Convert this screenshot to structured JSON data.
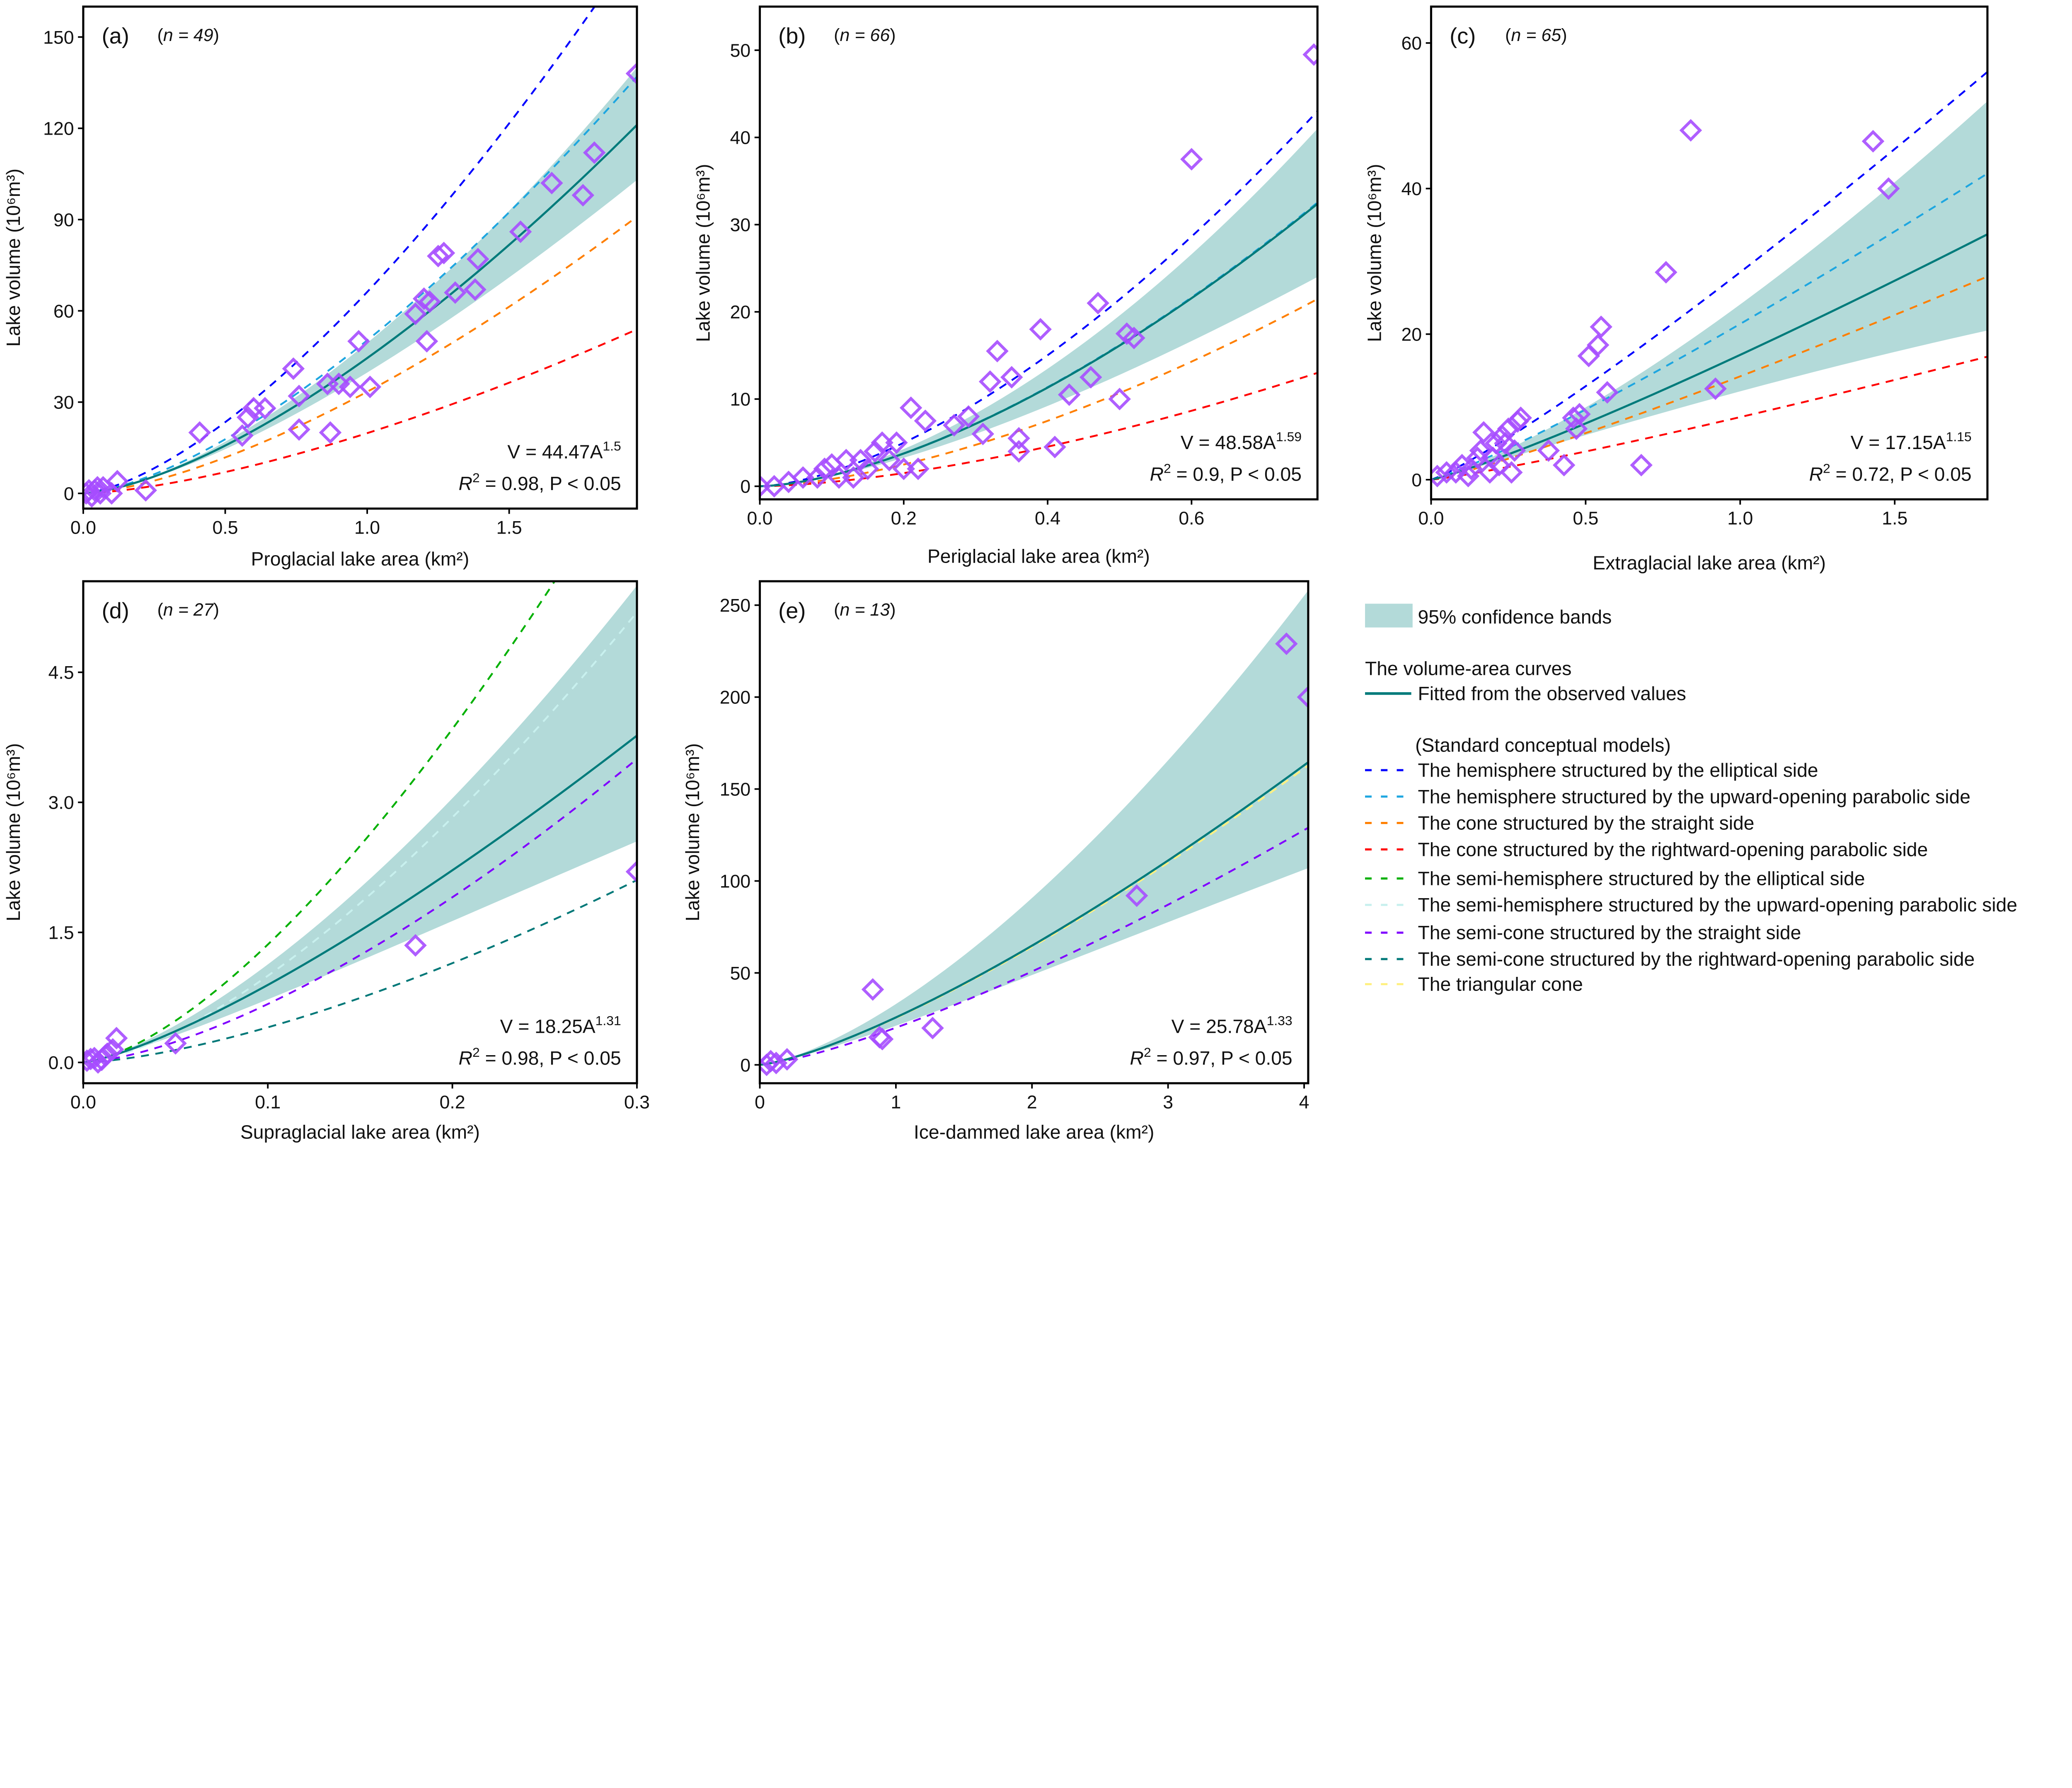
{
  "colors": {
    "fit": "#007b7b",
    "band": "#b3dad9",
    "points": "#a64dff",
    "hemi_elliptical": "#0000ff",
    "hemi_parabolic": "#1ea6e0",
    "cone_straight": "#ff7f00",
    "cone_parabolic": "#ff0000",
    "semihemi_elliptical": "#00b000",
    "semihemi_parabolic": "#c8f0ee",
    "semicone_straight": "#8000ff",
    "semicone_parabolic": "#007878",
    "triangular_cone": "#fff080"
  },
  "legend": {
    "band_label": "95% confidence bands",
    "curves_title": "The volume-area curves",
    "fit_label": "Fitted from the observed values",
    "models_title": "(Standard conceptual models)",
    "models": [
      {
        "key": "hemi_elliptical",
        "label": "The hemisphere structured by the elliptical side"
      },
      {
        "key": "hemi_parabolic",
        "label": "The hemisphere structured by the upward-opening parabolic side"
      },
      {
        "key": "cone_straight",
        "label": "The cone structured by the straight side"
      },
      {
        "key": "cone_parabolic",
        "label": "The cone structured by the rightward-opening parabolic side"
      },
      {
        "key": "semihemi_elliptical",
        "label": "The semi-hemisphere structured by the elliptical side"
      },
      {
        "key": "semihemi_parabolic",
        "label": "The semi-hemisphere structured by the upward-opening parabolic side"
      },
      {
        "key": "semicone_straight",
        "label": "The semi-cone structured by the straight side"
      },
      {
        "key": "semicone_parabolic",
        "label": "The semi-cone structured by the rightward-opening parabolic side"
      },
      {
        "key": "triangular_cone",
        "label": "The triangular cone"
      }
    ]
  },
  "chart_data": [
    {
      "type": "scatter",
      "panel": "(a)",
      "n_label": "n = 49",
      "xlabel": "Proglacial lake area (km²)",
      "ylabel": "Lake volume (10⁶m³)",
      "xlim": [
        0,
        1.95
      ],
      "ylim": [
        -5,
        160
      ],
      "xticks": [
        0,
        0.5,
        1.0,
        1.5
      ],
      "xtick_labels": [
        "0.0",
        "0.5",
        "1.0",
        "1.5"
      ],
      "yticks": [
        0,
        30,
        60,
        90,
        120,
        150
      ],
      "ytick_labels": [
        "0",
        "30",
        "60",
        "90",
        "120",
        "150"
      ],
      "fit": {
        "coef": 44.47,
        "exp": 1.5
      },
      "equation": {
        "lhs": "V = 44.47A",
        "exp": "1.5",
        "r": "R",
        "r_exp": "2",
        "rest": " = 0.98, P < 0.05"
      },
      "ci_at_xmax": [
        103,
        140
      ],
      "models": [
        {
          "key": "hemi_elliptical",
          "coef": 66.2,
          "exp": 1.5
        },
        {
          "key": "hemi_parabolic",
          "coef": 50.3,
          "exp": 1.5
        },
        {
          "key": "cone_straight",
          "coef": 33.4,
          "exp": 1.5
        },
        {
          "key": "cone_parabolic",
          "coef": 19.8,
          "exp": 1.5
        }
      ],
      "points": [
        [
          0.01,
          0
        ],
        [
          0.02,
          1
        ],
        [
          0.03,
          -1
        ],
        [
          0.04,
          1
        ],
        [
          0.05,
          2
        ],
        [
          0.06,
          0
        ],
        [
          0.07,
          2
        ],
        [
          0.1,
          0
        ],
        [
          0.12,
          4
        ],
        [
          0.22,
          1
        ],
        [
          0.41,
          20
        ],
        [
          0.56,
          19
        ],
        [
          0.58,
          25
        ],
        [
          0.6,
          28
        ],
        [
          0.64,
          28
        ],
        [
          0.74,
          41
        ],
        [
          0.76,
          32
        ],
        [
          0.76,
          21
        ],
        [
          0.87,
          20
        ],
        [
          0.86,
          36
        ],
        [
          0.9,
          36
        ],
        [
          0.94,
          35
        ],
        [
          0.97,
          50
        ],
        [
          1.01,
          35
        ],
        [
          1.17,
          59
        ],
        [
          1.2,
          64
        ],
        [
          1.22,
          63
        ],
        [
          1.21,
          50
        ],
        [
          1.25,
          78
        ],
        [
          1.27,
          79
        ],
        [
          1.31,
          66
        ],
        [
          1.38,
          67
        ],
        [
          1.39,
          77
        ],
        [
          1.54,
          86
        ],
        [
          1.65,
          102
        ],
        [
          1.76,
          98
        ],
        [
          1.8,
          112
        ],
        [
          1.95,
          138
        ]
      ]
    },
    {
      "type": "scatter",
      "panel": "(b)",
      "n_label": "n = 66",
      "xlabel": "Periglacial lake area (km²)",
      "ylabel": "Lake volume (10⁶m³)",
      "xlim": [
        0,
        0.775
      ],
      "ylim": [
        -1.5,
        55
      ],
      "xticks": [
        0,
        0.2,
        0.4,
        0.6
      ],
      "xtick_labels": [
        "0.0",
        "0.2",
        "0.4",
        "0.6"
      ],
      "yticks": [
        0,
        10,
        20,
        30,
        40,
        50
      ],
      "ytick_labels": [
        "0",
        "10",
        "20",
        "30",
        "40",
        "50"
      ],
      "fit": {
        "coef": 48.58,
        "exp": 1.59
      },
      "equation": {
        "lhs": "V = 48.58A",
        "exp": "1.59",
        "r": "R",
        "r_exp": "2",
        "rest": " = 0.9, P < 0.05"
      },
      "ci_at_xmax": [
        24,
        41
      ],
      "models": [
        {
          "key": "hemi_elliptical",
          "coef": 64.5,
          "exp": 1.59
        },
        {
          "key": "hemi_parabolic",
          "coef": 48.8,
          "exp": 1.59
        },
        {
          "key": "cone_straight",
          "coef": 32.2,
          "exp": 1.59
        },
        {
          "key": "cone_parabolic",
          "coef": 19.5,
          "exp": 1.59
        }
      ],
      "points": [
        [
          0.0,
          0
        ],
        [
          0.02,
          0
        ],
        [
          0.04,
          0.5
        ],
        [
          0.06,
          1
        ],
        [
          0.08,
          1
        ],
        [
          0.09,
          2
        ],
        [
          0.1,
          2.5
        ],
        [
          0.11,
          1
        ],
        [
          0.12,
          3
        ],
        [
          0.13,
          1
        ],
        [
          0.14,
          3
        ],
        [
          0.15,
          2
        ],
        [
          0.16,
          4
        ],
        [
          0.17,
          5
        ],
        [
          0.18,
          3
        ],
        [
          0.19,
          5
        ],
        [
          0.2,
          2
        ],
        [
          0.21,
          9
        ],
        [
          0.22,
          2
        ],
        [
          0.23,
          7.5
        ],
        [
          0.27,
          7
        ],
        [
          0.29,
          8
        ],
        [
          0.31,
          6
        ],
        [
          0.32,
          12
        ],
        [
          0.33,
          15.5
        ],
        [
          0.35,
          12.5
        ],
        [
          0.36,
          5.5
        ],
        [
          0.36,
          4
        ],
        [
          0.39,
          18
        ],
        [
          0.41,
          4.5
        ],
        [
          0.43,
          10.5
        ],
        [
          0.46,
          12.5
        ],
        [
          0.47,
          21
        ],
        [
          0.5,
          10
        ],
        [
          0.51,
          17.5
        ],
        [
          0.52,
          17
        ],
        [
          0.6,
          37.5
        ],
        [
          0.77,
          49.5
        ]
      ]
    },
    {
      "type": "scatter",
      "panel": "(c)",
      "n_label": "n = 65",
      "xlabel": "Extraglacial lake area (km²)",
      "ylabel": "Lake volume (10⁶m³)",
      "xlim": [
        0,
        1.8
      ],
      "ylim": [
        -2.7,
        65
      ],
      "xticks": [
        0,
        0.5,
        1.0,
        1.5
      ],
      "xtick_labels": [
        "0.0",
        "0.5",
        "1.0",
        "1.5"
      ],
      "yticks": [
        0,
        20,
        40,
        60
      ],
      "ytick_labels": [
        "0",
        "20",
        "40",
        "60"
      ],
      "fit": {
        "coef": 17.15,
        "exp": 1.15
      },
      "equation": {
        "lhs": "V = 17.15A",
        "exp": "1.15",
        "r": "R",
        "r_exp": "2",
        "rest": " = 0.72, P < 0.05"
      },
      "ci_at_xmax": [
        20.5,
        52
      ],
      "models": [
        {
          "key": "hemi_elliptical",
          "coef": 28.5,
          "exp": 1.15
        },
        {
          "key": "hemi_parabolic",
          "coef": 21.4,
          "exp": 1.15
        },
        {
          "key": "cone_straight",
          "coef": 14.2,
          "exp": 1.15
        },
        {
          "key": "cone_parabolic",
          "coef": 8.6,
          "exp": 1.15
        }
      ],
      "points": [
        [
          0.02,
          0.5
        ],
        [
          0.05,
          1
        ],
        [
          0.08,
          1
        ],
        [
          0.1,
          2
        ],
        [
          0.12,
          0.5
        ],
        [
          0.13,
          1.5
        ],
        [
          0.15,
          3
        ],
        [
          0.16,
          4
        ],
        [
          0.17,
          6.5
        ],
        [
          0.19,
          1
        ],
        [
          0.2,
          3
        ],
        [
          0.21,
          5
        ],
        [
          0.22,
          2
        ],
        [
          0.23,
          6
        ],
        [
          0.24,
          5
        ],
        [
          0.25,
          7
        ],
        [
          0.26,
          1
        ],
        [
          0.27,
          4
        ],
        [
          0.28,
          8
        ],
        [
          0.29,
          8.5
        ],
        [
          0.38,
          4
        ],
        [
          0.43,
          2
        ],
        [
          0.46,
          8.5
        ],
        [
          0.47,
          7
        ],
        [
          0.48,
          9
        ],
        [
          0.51,
          17
        ],
        [
          0.54,
          18.5
        ],
        [
          0.55,
          21
        ],
        [
          0.57,
          12
        ],
        [
          0.68,
          2
        ],
        [
          0.76,
          28.5
        ],
        [
          0.84,
          48
        ],
        [
          0.92,
          12.5
        ],
        [
          1.43,
          46.5
        ],
        [
          1.48,
          40
        ]
      ]
    },
    {
      "type": "scatter",
      "panel": "(d)",
      "n_label": "n = 27",
      "xlabel": "Supraglacial lake area (km²)",
      "ylabel": "Lake volume (10⁶m³)",
      "xlim": [
        0,
        0.3
      ],
      "ylim": [
        -0.24,
        5.55
      ],
      "xticks": [
        0,
        0.1,
        0.2,
        0.3
      ],
      "xtick_labels": [
        "0.0",
        "0.1",
        "0.2",
        "0.3"
      ],
      "yticks": [
        0,
        1.5,
        3.0,
        4.5
      ],
      "ytick_labels": [
        "0.0",
        "1.5",
        "3.0",
        "4.5"
      ],
      "fit": {
        "coef": 18.25,
        "exp": 1.31
      },
      "equation": {
        "lhs": "V = 18.25A",
        "exp": "1.31",
        "r": "R",
        "r_exp": "2",
        "rest": " = 0.98, P < 0.05"
      },
      "ci_at_xmax": [
        2.55,
        5.5
      ],
      "models": [
        {
          "key": "semihemi_elliptical",
          "coef": 43,
          "exp": 1.5
        },
        {
          "key": "semihemi_parabolic",
          "coef": 31.6,
          "exp": 1.5
        },
        {
          "key": "semicone_straight",
          "coef": 21.3,
          "exp": 1.5
        },
        {
          "key": "semicone_parabolic",
          "coef": 12.8,
          "exp": 1.5
        }
      ],
      "points": [
        [
          0.002,
          0.02
        ],
        [
          0.004,
          0.04
        ],
        [
          0.006,
          0.05
        ],
        [
          0.008,
          0.0
        ],
        [
          0.01,
          0.03
        ],
        [
          0.012,
          0.08
        ],
        [
          0.013,
          0.1
        ],
        [
          0.016,
          0.15
        ],
        [
          0.018,
          0.28
        ],
        [
          0.05,
          0.22
        ],
        [
          0.18,
          1.35
        ],
        [
          0.3,
          2.2
        ]
      ]
    },
    {
      "type": "scatter",
      "panel": "(e)",
      "n_label": "n = 13",
      "xlabel": "Ice-dammed lake area (km²)",
      "ylabel": "Lake volume (10⁶m³)",
      "xlim": [
        0,
        4.03
      ],
      "ylim": [
        -10,
        263
      ],
      "xticks": [
        0,
        1,
        2,
        3,
        4
      ],
      "xtick_labels": [
        "0",
        "1",
        "2",
        "3",
        "4"
      ],
      "yticks": [
        0,
        50,
        100,
        150,
        200,
        250
      ],
      "ytick_labels": [
        "0",
        "50",
        "100",
        "150",
        "200",
        "250"
      ],
      "fit": {
        "coef": 25.78,
        "exp": 1.33
      },
      "equation": {
        "lhs": "V = 25.78A",
        "exp": "1.33",
        "r": "R",
        "r_exp": "2",
        "rest": " = 0.97, P < 0.05"
      },
      "ci_at_xmax": [
        107,
        258
      ],
      "models": [
        {
          "key": "semicone_straight",
          "coef": 20.2,
          "exp": 1.33
        },
        {
          "key": "triangular_cone",
          "coef": 25.5,
          "exp": 1.33
        }
      ],
      "points": [
        [
          0.05,
          0
        ],
        [
          0.08,
          2
        ],
        [
          0.12,
          1
        ],
        [
          0.2,
          3
        ],
        [
          0.83,
          41
        ],
        [
          0.88,
          15
        ],
        [
          0.9,
          14
        ],
        [
          1.27,
          20
        ],
        [
          2.77,
          92
        ],
        [
          3.87,
          229
        ],
        [
          4.03,
          200
        ]
      ]
    }
  ]
}
